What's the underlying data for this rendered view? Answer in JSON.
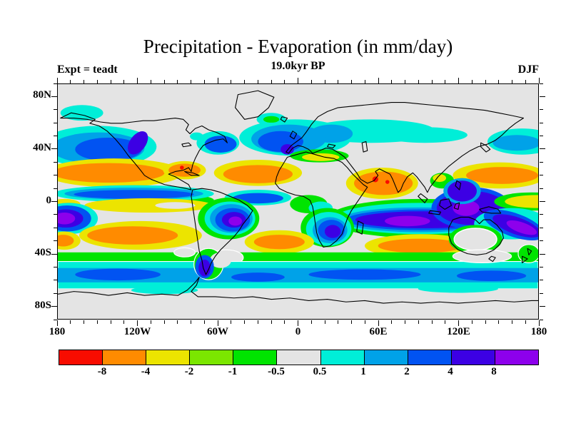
{
  "figure": {
    "title": "Precipitation - Evaporation (in mm/day)",
    "subtitle": "19.0kyr BP",
    "experiment_label": "Expt = teadt",
    "season_label": "DJF"
  },
  "chart_data": {
    "type": "heatmap",
    "title": "Precipitation - Evaporation (in mm/day)",
    "subtitle": "19.0kyr BP",
    "experiment": "Expt = teadt",
    "season": "DJF",
    "units": "mm/day",
    "extent": {
      "lon_left": "180W",
      "lon_right": "180E",
      "lat_top": "90N",
      "lat_bottom": "90S"
    },
    "x_axis": {
      "tick_labels": [
        "180",
        "120W",
        "60W",
        "0",
        "60E",
        "120E",
        "180"
      ],
      "minor_tick_interval_deg": 10,
      "major_tick_interval_deg": 60
    },
    "y_axis": {
      "tick_labels": [
        "80N",
        "40N",
        "0",
        "40S",
        "80S"
      ],
      "minor_tick_interval_deg": 10,
      "major_tick_interval_deg": 40
    },
    "colorbar": {
      "boundary_labels": [
        "-8",
        "-4",
        "-2",
        "-1",
        "-0.5",
        "0.5",
        "1",
        "2",
        "4",
        "8"
      ],
      "levels": [
        -8,
        -4,
        -2,
        -1,
        -0.5,
        0.5,
        1,
        2,
        4,
        8
      ],
      "colors": [
        "#f80c00",
        "#ff8b00",
        "#ece400",
        "#7be600",
        "#00e400",
        "#e4e4e4",
        "#00eed8",
        "#00a2e8",
        "#0153f2",
        "#3c00e4",
        "#8d00ec"
      ],
      "color_meanings": [
        "< -8",
        "-8 to -4",
        "-4 to -2",
        "-2 to -1",
        "-1 to -0.5",
        "-0.5 to 0.5",
        "0.5 to 1",
        "1 to 2",
        "2 to 4",
        "4 to 8",
        "> 8"
      ]
    },
    "features": [
      {
        "region": "ITCZ band south of equator: S Indian Ocean, maritime continent, SPCZ, Amazon basin, southern Africa",
        "value_mm_day": "+2 to >+8"
      },
      {
        "region": "Subtropical dry bands ~15-30N and ~15-35S over Pacific, Atlantic, Indian Oceans",
        "value_mm_day": "-2 to -8"
      },
      {
        "region": "Arabian Sea / North Indian Ocean core spots",
        "value_mm_day": "< -8"
      },
      {
        "region": "Mid-latitude storm tracks: N Pacific, N Atlantic/Europe, Southern Ocean 45-60S",
        "value_mm_day": "+0.5 to +4"
      },
      {
        "region": "Polar caps and continental interiors (Sahara, Australia, N America, central Asia)",
        "value_mm_day": "-0.5 to +0.5"
      },
      {
        "region": "Equatorial central/east Pacific dry tongue",
        "value_mm_day": "-2 to -0.5"
      }
    ]
  }
}
